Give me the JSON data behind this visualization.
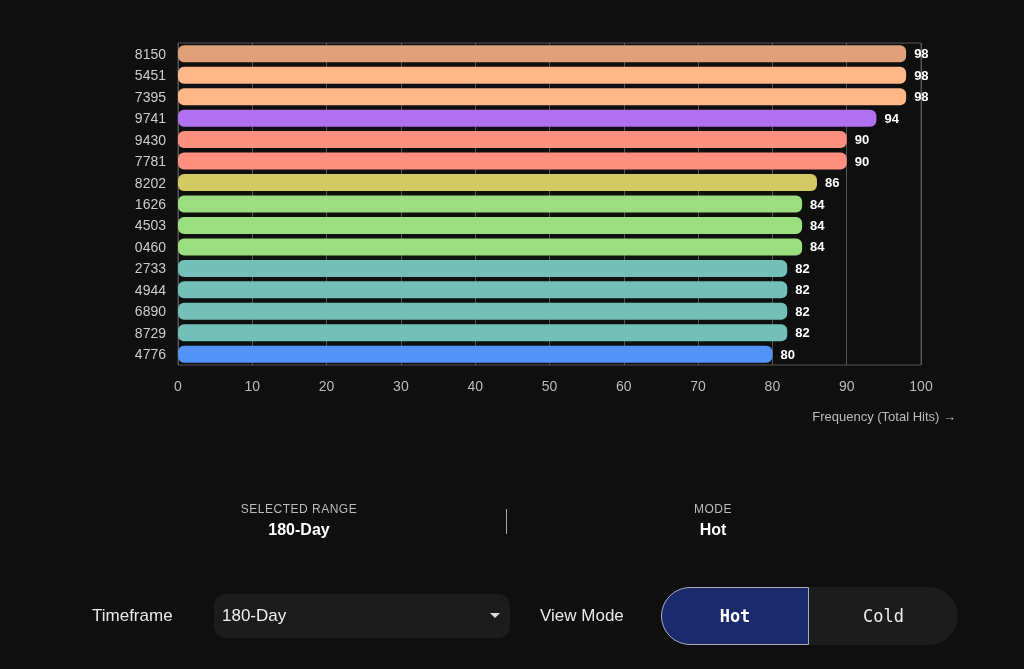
{
  "chart_data": {
    "type": "bar",
    "orientation": "horizontal",
    "xlabel": "Frequency (Total Hits) →",
    "categories": [
      "8150",
      "5451",
      "7395",
      "9741",
      "9430",
      "7781",
      "8202",
      "1626",
      "4503",
      "0460",
      "2733",
      "4944",
      "6890",
      "8729",
      "4776"
    ],
    "values": [
      98,
      98,
      98,
      94,
      90,
      90,
      86,
      84,
      84,
      84,
      82,
      82,
      82,
      82,
      80
    ],
    "colors": [
      "#e0a07a",
      "#ffb788",
      "#ffb788",
      "#b070f0",
      "#ff9080",
      "#ff9080",
      "#d4c862",
      "#9ade80",
      "#9ade80",
      "#9ade80",
      "#72c0b8",
      "#72c0b8",
      "#72c0b8",
      "#72c0b8",
      "#5294f8"
    ],
    "xlim": [
      0,
      100
    ],
    "xticks": [
      0,
      10,
      20,
      30,
      40,
      50,
      60,
      70,
      80,
      90,
      100
    ],
    "grid": "x",
    "data_labels": true,
    "annotations": [
      "SELECTED RANGE",
      "180-Day",
      "MODE",
      "Hot",
      "Timeframe",
      "180-Day",
      "View Mode",
      "Hot",
      "Cold"
    ]
  }
}
